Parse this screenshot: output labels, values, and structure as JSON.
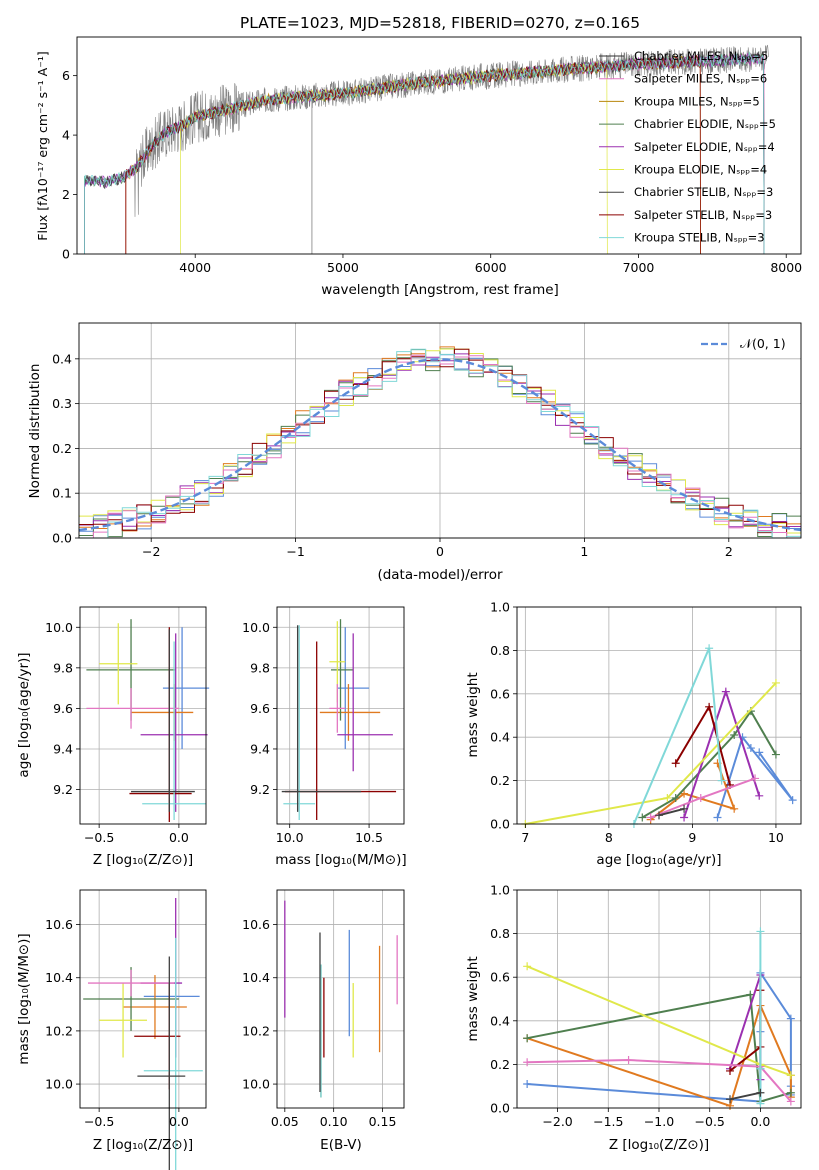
{
  "figure_title": "PLATE=1023, MJD=52818, FIBERID=0270, z=0.165",
  "panels": {
    "spectrum": {
      "xlabel": "wavelength [Angstrom, rest frame]",
      "ylabel": "Flux [fλ10⁻¹⁷ erg cm⁻² s⁻¹ A⁻¹]",
      "xticks": [
        "4000",
        "5000",
        "6000",
        "7000",
        "8000"
      ],
      "yticks": [
        "0",
        "2",
        "4",
        "6"
      ],
      "legend": [
        "Chabrier MILES, Nₛₚₚ=5",
        "Salpeter MILES, Nₛₚₚ=6",
        "Kroupa MILES, Nₛₚₚ=5",
        "Chabrier ELODIE, Nₛₚₚ=5",
        "Salpeter ELODIE, Nₛₚₚ=4",
        "Kroupa ELODIE, Nₛₚₚ=4",
        "Chabrier STELIB, Nₛₚₚ=3",
        "Salpeter STELIB, Nₛₚₚ=3",
        "Kroupa STELIB, Nₛₚₚ=3"
      ]
    },
    "residuals": {
      "xlabel": "(data-model)/error",
      "ylabel": "Normed distribution",
      "xticks": [
        "−2",
        "−1",
        "0",
        "1",
        "2"
      ],
      "yticks": [
        "0.0",
        "0.1",
        "0.2",
        "0.3",
        "0.4"
      ],
      "legend": "𝒩(0, 1)"
    },
    "z_age": {
      "xlabel": "Z [log₁₀(Z/Z⊙)]",
      "ylabel": "age  [log₁₀(age/yr)]",
      "xticks": [
        "−0.5",
        "0.0"
      ],
      "yticks": [
        "9.2",
        "9.4",
        "9.6",
        "9.8",
        "10.0"
      ]
    },
    "mass_age": {
      "xlabel": "mass [log₁₀(M/M⊙)]",
      "xticks": [
        "10.0",
        "10.5"
      ],
      "yticks": [
        "9.2",
        "9.4",
        "9.6",
        "9.8",
        "10.0"
      ]
    },
    "age_weight": {
      "xlabel": "age  [log₁₀(age/yr)]",
      "ylabel": "mass weight",
      "xticks": [
        "7",
        "8",
        "9",
        "10"
      ],
      "yticks": [
        "0.0",
        "0.2",
        "0.4",
        "0.6",
        "0.8",
        "1.0"
      ]
    },
    "z_mass": {
      "xlabel": "Z [log₁₀(Z/Z⊙)]",
      "ylabel": "mass [log₁₀(M/M⊙)]",
      "xticks": [
        "−0.5",
        "0.0"
      ],
      "yticks": [
        "10.0",
        "10.2",
        "10.4",
        "10.6"
      ]
    },
    "ebv_mass": {
      "xlabel": "E(B-V)",
      "xticks": [
        "0.05",
        "0.10",
        "0.15"
      ],
      "yticks": [
        "10.0",
        "10.2",
        "10.4",
        "10.6"
      ]
    },
    "z_weight": {
      "xlabel": "Z [log₁₀(Z/Z⊙)]",
      "ylabel": "mass weight",
      "xticks": [
        "−2.0",
        "−1.5",
        "−1.0",
        "−0.5",
        "0.0"
      ],
      "yticks": [
        "0.0",
        "0.2",
        "0.4",
        "0.6",
        "0.8",
        "1.0"
      ]
    }
  },
  "chart_data": [
    {
      "type": "line",
      "title": "PLATE=1023, MJD=52818, FIBERID=0270, z=0.165",
      "xlabel": "wavelength [Angstrom, rest frame]",
      "ylabel": "Flux",
      "xlim": [
        3200,
        8100
      ],
      "ylim": [
        0,
        7.3
      ],
      "data_color": "#808080",
      "model_colors": [
        "#2f2f2f",
        "#e377c2",
        "#b8860b",
        "#4f7f4f",
        "#9b30b0",
        "#e0e84a",
        "#404040",
        "#8b0000",
        "#80d8d8"
      ],
      "data_envelope": {
        "x": [
          3250,
          3300,
          3400,
          3500,
          3600,
          3700,
          3800,
          3900,
          4000,
          4200,
          4500,
          5000,
          5500,
          6000,
          6500,
          7000,
          7500,
          7900
        ],
        "y": [
          2.45,
          2.5,
          2.4,
          2.55,
          2.9,
          3.6,
          4.1,
          4.3,
          4.6,
          4.85,
          5.2,
          5.4,
          5.75,
          6.0,
          6.2,
          6.4,
          6.5,
          6.6
        ]
      }
    },
    {
      "type": "line",
      "xlabel": "(data-model)/error",
      "ylabel": "Normed distribution",
      "xlim": [
        -2.5,
        2.5
      ],
      "ylim": [
        0,
        0.48
      ],
      "bin_width": 0.1,
      "gaussian": {
        "name": "𝒩(0, 1)",
        "mean": 0,
        "sigma": 1,
        "color": "#5b8bd9"
      },
      "series_colors": [
        "#5b8bd9",
        "#e07a20",
        "#4f7f4f",
        "#9b30b0",
        "#e0e84a",
        "#8b0000",
        "#e377c2",
        "#80d8d8"
      ]
    },
    {
      "type": "scatter",
      "xlabel": "Z [log₁₀(Z/Z⊙)]",
      "ylabel": "age  [log₁₀(age/yr)]",
      "xlim": [
        -0.62,
        0.17
      ],
      "ylim": [
        9.03,
        10.1
      ],
      "points": [
        {
          "x": 0.02,
          "xerr": [
            0.12,
            0.17
          ],
          "y": 9.7,
          "yerr": [
            0.3,
            0.3
          ],
          "color": "#5b8bd9"
        },
        {
          "x": -0.03,
          "xerr": [
            0.27,
            0.12
          ],
          "y": 9.58,
          "yerr": [
            0.14,
            0.14
          ],
          "color": "#e07a20"
        },
        {
          "x": -0.3,
          "xerr": [
            0.28,
            0.28
          ],
          "y": 9.79,
          "yerr": [
            0.25,
            0.25
          ],
          "color": "#4f7f4f"
        },
        {
          "x": -0.02,
          "xerr": [
            0.22,
            0.2
          ],
          "y": 9.47,
          "yerr": [
            0.38,
            0.5
          ],
          "color": "#9b30b0"
        },
        {
          "x": -0.38,
          "xerr": [
            0.12,
            0.12
          ],
          "y": 9.82,
          "yerr": [
            0.2,
            0.2
          ],
          "color": "#e0e84a"
        },
        {
          "x": -0.06,
          "xerr": [
            0.25,
            0.14
          ],
          "y": 9.18,
          "yerr": [
            0.14,
            0.82
          ],
          "color": "#8b0000"
        },
        {
          "x": -0.3,
          "xerr": [
            0.28,
            0.3
          ],
          "y": 9.6,
          "yerr": [
            0.1,
            0.1
          ],
          "color": "#e377c2"
        },
        {
          "x": -0.03,
          "xerr": [
            0.2,
            0.2
          ],
          "y": 9.13,
          "yerr": [
            0.08,
            0.8
          ],
          "color": "#80d8d8"
        },
        {
          "x": -0.06,
          "xerr": [
            0.24,
            0.16
          ],
          "y": 9.19,
          "yerr": [
            0.1,
            0.8
          ],
          "color": "#404040"
        }
      ]
    },
    {
      "type": "scatter",
      "xlabel": "mass [log₁₀(M/M⊙)]",
      "xlim": [
        9.92,
        10.72
      ],
      "ylim": [
        9.03,
        10.1
      ],
      "points": [
        {
          "x": 10.35,
          "xerr": [
            0.05,
            0.15
          ],
          "y": 9.7,
          "yerr": [
            0.3,
            0.3
          ],
          "color": "#5b8bd9"
        },
        {
          "x": 10.37,
          "xerr": [
            0.18,
            0.2
          ],
          "y": 9.58,
          "yerr": [
            0.14,
            0.14
          ],
          "color": "#e07a20"
        },
        {
          "x": 10.32,
          "xerr": [
            0.06,
            0.08
          ],
          "y": 9.79,
          "yerr": [
            0.25,
            0.25
          ],
          "color": "#4f7f4f"
        },
        {
          "x": 10.4,
          "xerr": [
            0.1,
            0.25
          ],
          "y": 9.47,
          "yerr": [
            0.18,
            0.5
          ],
          "color": "#9b30b0"
        },
        {
          "x": 10.3,
          "xerr": [
            0.05,
            0.05
          ],
          "y": 9.83,
          "yerr": [
            0.2,
            0.2
          ],
          "color": "#e0e84a"
        },
        {
          "x": 10.17,
          "xerr": [
            0.2,
            0.5
          ],
          "y": 9.19,
          "yerr": [
            0.14,
            0.74
          ],
          "color": "#8b0000"
        },
        {
          "x": 10.3,
          "xerr": [
            0.05,
            0.05
          ],
          "y": 9.6,
          "yerr": [
            0.12,
            0.12
          ],
          "color": "#e377c2"
        },
        {
          "x": 10.06,
          "xerr": [
            0.1,
            0.1
          ],
          "y": 9.13,
          "yerr": [
            0.08,
            0.88
          ],
          "color": "#80d8d8"
        },
        {
          "x": 10.05,
          "xerr": [
            0.1,
            0.4
          ],
          "y": 9.19,
          "yerr": [
            0.1,
            0.82
          ],
          "color": "#404040"
        }
      ]
    },
    {
      "type": "line",
      "xlabel": "age  [log₁₀(age/yr)]",
      "ylabel": "mass weight",
      "xlim": [
        6.9,
        10.3
      ],
      "ylim": [
        0,
        1
      ],
      "series": [
        {
          "color": "#5b8bd9",
          "x": [
            9.3,
            9.6,
            9.7,
            10.2,
            9.8
          ],
          "y": [
            0.03,
            0.4,
            0.35,
            0.11,
            0.33
          ]
        },
        {
          "color": "#e07a20",
          "x": [
            8.5,
            8.9,
            9.5,
            9.3
          ],
          "y": [
            0.02,
            0.14,
            0.07,
            0.28
          ]
        },
        {
          "color": "#4f7f4f",
          "x": [
            8.4,
            8.8,
            9.5,
            9.7,
            10.0
          ],
          "y": [
            0.03,
            0.12,
            0.41,
            0.52,
            0.32
          ]
        },
        {
          "color": "#9b30b0",
          "x": [
            8.9,
            9.4,
            9.8
          ],
          "y": [
            0.03,
            0.61,
            0.13
          ]
        },
        {
          "color": "#e0e84a",
          "x": [
            7.0,
            8.7,
            10.0
          ],
          "y": [
            0.0,
            0.12,
            0.65
          ]
        },
        {
          "color": "#8b0000",
          "x": [
            8.8,
            9.2,
            9.45
          ],
          "y": [
            0.28,
            0.54,
            0.18
          ]
        },
        {
          "color": "#e377c2",
          "x": [
            8.5,
            9.1,
            9.75
          ],
          "y": [
            0.03,
            0.12,
            0.21
          ]
        },
        {
          "color": "#80d8d8",
          "x": [
            8.3,
            9.2,
            9.35
          ],
          "y": [
            0.0,
            0.81,
            0.2
          ]
        },
        {
          "color": "#404040",
          "x": [
            8.6,
            8.9
          ],
          "y": [
            0.04,
            0.07
          ]
        }
      ]
    },
    {
      "type": "scatter",
      "xlabel": "Z [log₁₀(Z/Z⊙)]",
      "ylabel": "mass [log₁₀(M/M⊙)]",
      "xlim": [
        -0.62,
        0.17
      ],
      "ylim": [
        9.91,
        10.73
      ],
      "points": [
        {
          "x": -0.02,
          "xerr": [
            0.2,
            0.15
          ],
          "y": 10.33,
          "yerr": [
            0.05,
            0.05
          ],
          "color": "#5b8bd9"
        },
        {
          "x": -0.15,
          "xerr": [
            0.2,
            0.2
          ],
          "y": 10.29,
          "yerr": [
            0.12,
            0.12
          ],
          "color": "#e07a20"
        },
        {
          "x": -0.3,
          "xerr": [
            0.3,
            0.3
          ],
          "y": 10.32,
          "yerr": [
            0.12,
            0.12
          ],
          "color": "#4f7f4f"
        },
        {
          "x": -0.02,
          "xerr": [
            0.22,
            0.04
          ],
          "y": 10.38,
          "yerr": [
            0.28,
            0.32
          ],
          "color": "#9b30b0"
        },
        {
          "x": -0.35,
          "xerr": [
            0.15,
            0.15
          ],
          "y": 10.24,
          "yerr": [
            0.14,
            0.14
          ],
          "color": "#e0e84a"
        },
        {
          "x": -0.06,
          "xerr": [
            0.22,
            0.07
          ],
          "y": 10.18,
          "yerr": [
            0.2,
            0.2
          ],
          "color": "#8b0000"
        },
        {
          "x": -0.3,
          "xerr": [
            0.27,
            0.27
          ],
          "y": 10.38,
          "yerr": [
            0.05,
            0.05
          ],
          "color": "#e377c2"
        },
        {
          "x": -0.02,
          "xerr": [
            0.2,
            0.17
          ],
          "y": 10.05,
          "yerr": [
            0.5,
            0.5
          ],
          "color": "#80d8d8"
        },
        {
          "x": -0.06,
          "xerr": [
            0.2,
            0.1
          ],
          "y": 10.03,
          "yerr": [
            0.45,
            0.45
          ],
          "color": "#404040"
        }
      ]
    },
    {
      "type": "scatter",
      "xlabel": "E(B-V)",
      "xlim": [
        0.042,
        0.172
      ],
      "ylim": [
        9.91,
        10.73
      ],
      "points": [
        {
          "x": 0.116,
          "y": 10.38,
          "yerr": [
            0.2,
            0.2
          ],
          "color": "#5b8bd9"
        },
        {
          "x": 0.147,
          "y": 10.32,
          "yerr": [
            0.2,
            0.2
          ],
          "color": "#e07a20"
        },
        {
          "x": 0.087,
          "y": 10.2,
          "yerr": [
            0.25,
            0.25
          ],
          "color": "#4f7f4f"
        },
        {
          "x": 0.05,
          "y": 10.47,
          "yerr": [
            0.22,
            0.22
          ],
          "color": "#9b30b0"
        },
        {
          "x": 0.12,
          "y": 10.24,
          "yerr": [
            0.14,
            0.14
          ],
          "color": "#e0e84a"
        },
        {
          "x": 0.09,
          "y": 10.25,
          "yerr": [
            0.15,
            0.15
          ],
          "color": "#8b0000"
        },
        {
          "x": 0.165,
          "y": 10.43,
          "yerr": [
            0.13,
            0.13
          ],
          "color": "#e377c2"
        },
        {
          "x": 0.087,
          "y": 10.2,
          "yerr": [
            0.25,
            0.25
          ],
          "color": "#80d8d8"
        },
        {
          "x": 0.086,
          "y": 10.27,
          "yerr": [
            0.3,
            0.3
          ],
          "color": "#404040"
        }
      ]
    },
    {
      "type": "line",
      "xlabel": "Z [log₁₀(Z/Z⊙)]",
      "ylabel": "mass weight",
      "xlim": [
        -2.4,
        0.4
      ],
      "ylim": [
        0,
        1
      ],
      "series": [
        {
          "color": "#5b8bd9",
          "x": [
            -2.3,
            0.0,
            0.0,
            0.0,
            0.0,
            0.3,
            0.3,
            0.3
          ],
          "y": [
            0.11,
            0.03,
            0.18,
            0.35,
            0.62,
            0.41,
            0.06,
            0.1
          ]
        },
        {
          "color": "#e07a20",
          "x": [
            -2.3,
            -0.3,
            0.0,
            0.3,
            0.3
          ],
          "y": [
            0.32,
            0.01,
            0.47,
            0.15,
            0.05
          ]
        },
        {
          "color": "#4f7f4f",
          "x": [
            -2.3,
            -0.1,
            0.0,
            0.3
          ],
          "y": [
            0.32,
            0.52,
            0.03,
            0.07
          ]
        },
        {
          "color": "#9b30b0",
          "x": [
            -0.3,
            0.0,
            0.0
          ],
          "y": [
            0.18,
            0.61,
            0.13
          ]
        },
        {
          "color": "#e0e84a",
          "x": [
            -2.3,
            0.0,
            0.3
          ],
          "y": [
            0.65,
            0.2,
            0.15
          ]
        },
        {
          "color": "#8b0000",
          "x": [
            -0.3,
            0.0,
            0.0
          ],
          "y": [
            0.17,
            0.28,
            0.54
          ]
        },
        {
          "color": "#e377c2",
          "x": [
            -2.3,
            -1.3,
            0.0,
            0.3
          ],
          "y": [
            0.21,
            0.22,
            0.19,
            0.03
          ]
        },
        {
          "color": "#80d8d8",
          "x": [
            0.0,
            0.0,
            0.0
          ],
          "y": [
            0.81,
            0.18,
            0.02
          ]
        },
        {
          "color": "#404040",
          "x": [
            -0.3,
            0.0
          ],
          "y": [
            0.04,
            0.07
          ]
        }
      ]
    }
  ]
}
